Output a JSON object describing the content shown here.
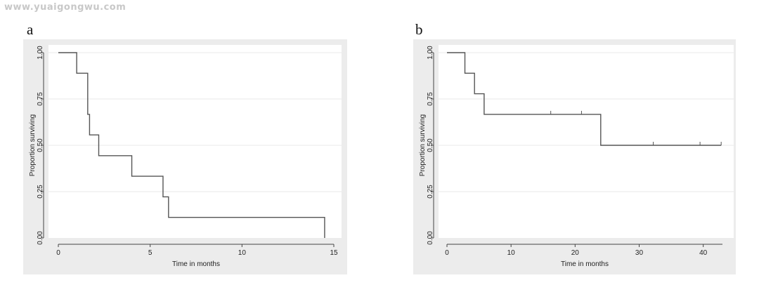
{
  "watermark": "www.yuaigongwu.com",
  "chart_data": [
    {
      "type": "line",
      "panel_label": "a",
      "xlabel": "Time in months",
      "ylabel": "Proportion surviving",
      "xlim": [
        0,
        15
      ],
      "ylim": [
        0,
        1
      ],
      "xticks": [
        0,
        5,
        10,
        15
      ],
      "xtick_labels": [
        "0",
        "5",
        "10",
        "15"
      ],
      "yticks": [
        0,
        0.25,
        0.5,
        0.75,
        1
      ],
      "ytick_labels": [
        "0.00",
        "0.25",
        "0.50",
        "0.75",
        "1.00"
      ],
      "grid": true,
      "step_function": true,
      "series": [
        {
          "x": [
            0,
            1.0,
            1.6,
            1.7,
            2.2,
            4.0,
            5.7,
            6.0,
            14.5
          ],
          "y": [
            1.0,
            0.889,
            0.667,
            0.556,
            0.444,
            0.333,
            0.222,
            0.111,
            0.0
          ],
          "censored_x": []
        }
      ]
    },
    {
      "type": "line",
      "panel_label": "b",
      "xlabel": "Time in months",
      "ylabel": "Proportion surviving",
      "xlim": [
        0,
        43
      ],
      "ylim": [
        0,
        1
      ],
      "xticks": [
        0,
        10,
        20,
        30,
        40
      ],
      "xtick_labels": [
        "0",
        "10",
        "20",
        "30",
        "40"
      ],
      "yticks": [
        0,
        0.25,
        0.5,
        0.75,
        1
      ],
      "ytick_labels": [
        "0.00",
        "0.25",
        "0.50",
        "0.75",
        "1.00"
      ],
      "grid": true,
      "step_function": true,
      "series": [
        {
          "x": [
            0,
            2.8,
            4.3,
            5.8,
            24.0,
            42.8
          ],
          "y": [
            1.0,
            0.889,
            0.778,
            0.667,
            0.5,
            0.5
          ],
          "censored_x": [
            16.2,
            21.0,
            32.2,
            39.5,
            42.8
          ]
        }
      ]
    }
  ]
}
